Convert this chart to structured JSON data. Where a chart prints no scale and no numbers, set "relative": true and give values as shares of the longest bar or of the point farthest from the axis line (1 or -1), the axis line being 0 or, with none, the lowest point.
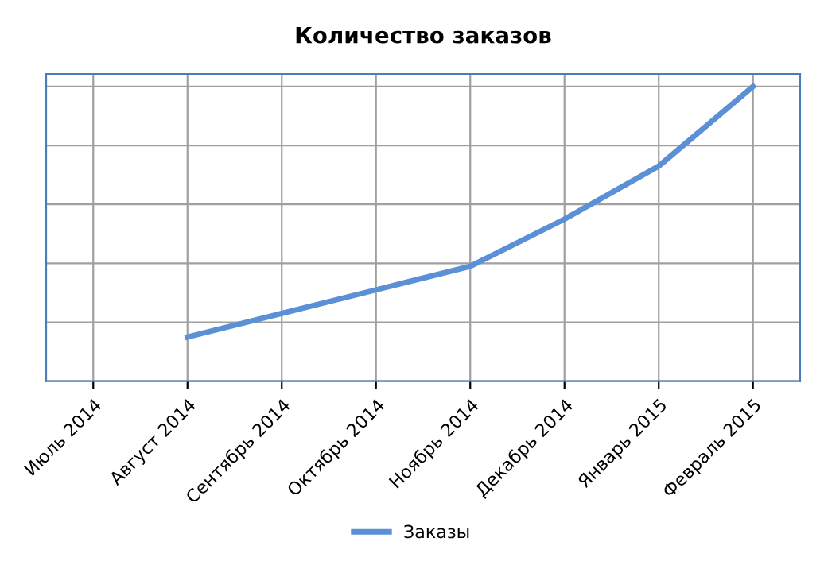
{
  "chart_data": {
    "type": "line",
    "title": "Количество заказов",
    "relative": true,
    "categories": [
      "Июль 2014",
      "Август 2014",
      "Сентябрь 2014",
      "Октябрь 2014",
      "Ноябрь 2014",
      "Декабрь 2014",
      "Январь 2015",
      "Февраль 2015"
    ],
    "series": [
      {
        "name": "Заказы",
        "color": "#5b8fd6",
        "values": [
          null,
          0.15,
          0.23,
          0.31,
          0.39,
          0.55,
          0.73,
          1
        ]
      }
    ],
    "grid": true,
    "legend": "bottom",
    "marker": "none",
    "line_style": "solid"
  }
}
